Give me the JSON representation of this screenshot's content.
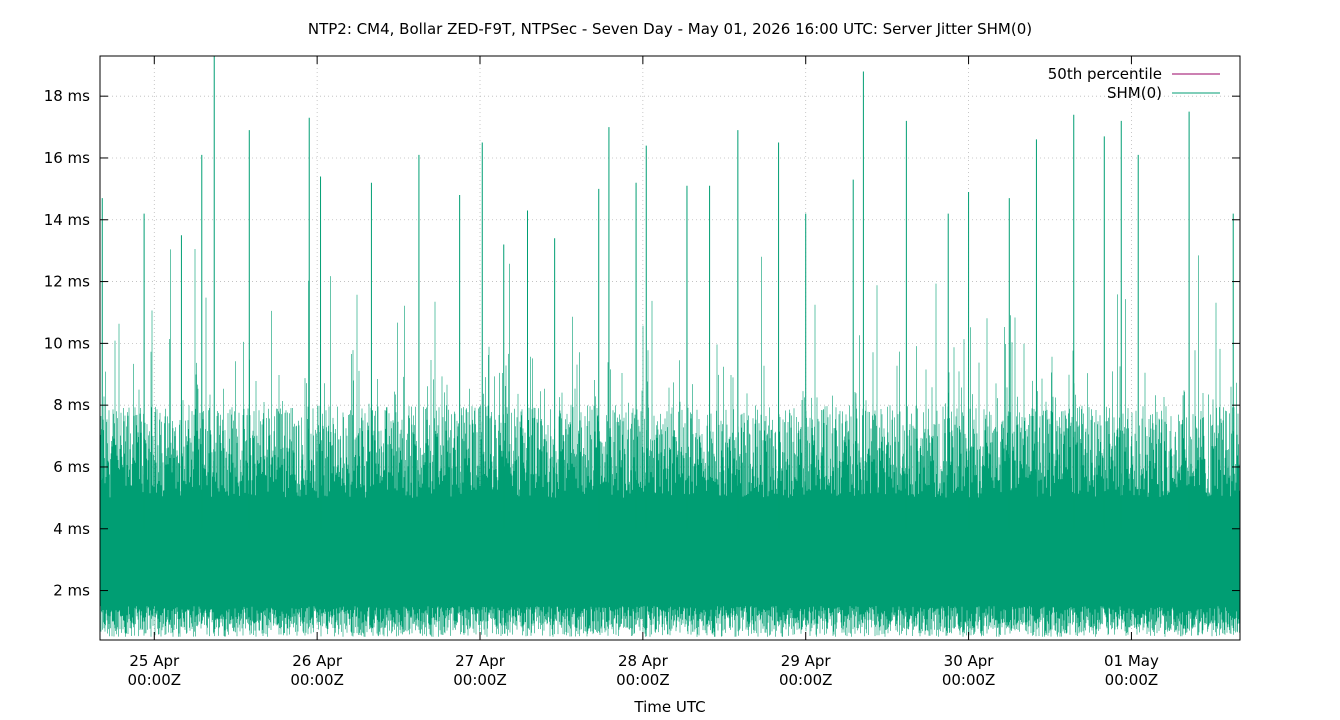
{
  "chart_data": {
    "type": "line",
    "title": "NTP2: CM4, Bollar ZED-F9T, NTPSec - Seven Day - May 01, 2026 16:00 UTC: Server Jitter SHM(0)",
    "xlabel": "Time UTC",
    "ylabel": "",
    "x_range": [
      "2026-04-24T16:00Z",
      "2026-05-01T16:00Z"
    ],
    "ylim": [
      0.4,
      19.3
    ],
    "y_ticks": [
      {
        "value": 2,
        "label": "2 ms"
      },
      {
        "value": 4,
        "label": "4 ms"
      },
      {
        "value": 6,
        "label": "6 ms"
      },
      {
        "value": 8,
        "label": "8 ms"
      },
      {
        "value": 10,
        "label": "10 ms"
      },
      {
        "value": 12,
        "label": "12 ms"
      },
      {
        "value": 14,
        "label": "14 ms"
      },
      {
        "value": 16,
        "label": "16 ms"
      },
      {
        "value": 18,
        "label": "18 ms"
      }
    ],
    "x_ticks": [
      {
        "date": "2026-04-25T00:00Z",
        "line1": "25 Apr",
        "line2": "00:00Z"
      },
      {
        "date": "2026-04-26T00:00Z",
        "line1": "26 Apr",
        "line2": "00:00Z"
      },
      {
        "date": "2026-04-27T00:00Z",
        "line1": "27 Apr",
        "line2": "00:00Z"
      },
      {
        "date": "2026-04-28T00:00Z",
        "line1": "28 Apr",
        "line2": "00:00Z"
      },
      {
        "date": "2026-04-29T00:00Z",
        "line1": "29 Apr",
        "line2": "00:00Z"
      },
      {
        "date": "2026-04-30T00:00Z",
        "line1": "30 Apr",
        "line2": "00:00Z"
      },
      {
        "date": "2026-05-01T00:00Z",
        "line1": "01 May",
        "line2": "00:00Z"
      }
    ],
    "grid": true,
    "legend_position": "top-right",
    "series": [
      {
        "name": "50th percentile",
        "color": "#990066",
        "values": []
      },
      {
        "name": "SHM(0)",
        "color": "#009e73",
        "dense_band": {
          "lower_ms": [
            0.5,
            1.5
          ],
          "upper_ms": [
            5.0,
            8.0
          ]
        },
        "peaks": [
          {
            "t": "2026-04-24T16:20Z",
            "ms": 14.7
          },
          {
            "t": "2026-04-24T22:30Z",
            "ms": 14.2
          },
          {
            "t": "2026-04-25T04:00Z",
            "ms": 13.5
          },
          {
            "t": "2026-04-25T07:00Z",
            "ms": 16.1
          },
          {
            "t": "2026-04-25T08:50Z",
            "ms": 19.3
          },
          {
            "t": "2026-04-25T14:00Z",
            "ms": 16.9
          },
          {
            "t": "2026-04-25T22:50Z",
            "ms": 17.3
          },
          {
            "t": "2026-04-26T00:30Z",
            "ms": 15.4
          },
          {
            "t": "2026-04-26T08:00Z",
            "ms": 15.2
          },
          {
            "t": "2026-04-26T15:00Z",
            "ms": 16.1
          },
          {
            "t": "2026-04-26T21:00Z",
            "ms": 14.8
          },
          {
            "t": "2026-04-27T00:20Z",
            "ms": 16.5
          },
          {
            "t": "2026-04-27T03:30Z",
            "ms": 13.2
          },
          {
            "t": "2026-04-27T07:00Z",
            "ms": 14.3
          },
          {
            "t": "2026-04-27T11:00Z",
            "ms": 13.4
          },
          {
            "t": "2026-04-27T17:30Z",
            "ms": 15.0
          },
          {
            "t": "2026-04-27T19:00Z",
            "ms": 17.0
          },
          {
            "t": "2026-04-27T23:00Z",
            "ms": 15.2
          },
          {
            "t": "2026-04-28T00:30Z",
            "ms": 16.4
          },
          {
            "t": "2026-04-28T06:30Z",
            "ms": 15.1
          },
          {
            "t": "2026-04-28T09:50Z",
            "ms": 15.1
          },
          {
            "t": "2026-04-28T14:00Z",
            "ms": 16.9
          },
          {
            "t": "2026-04-28T20:00Z",
            "ms": 16.5
          },
          {
            "t": "2026-04-29T00:00Z",
            "ms": 14.2
          },
          {
            "t": "2026-04-29T07:00Z",
            "ms": 15.3
          },
          {
            "t": "2026-04-29T08:30Z",
            "ms": 18.8
          },
          {
            "t": "2026-04-29T14:50Z",
            "ms": 17.2
          },
          {
            "t": "2026-04-29T21:00Z",
            "ms": 14.2
          },
          {
            "t": "2026-04-30T00:00Z",
            "ms": 14.9
          },
          {
            "t": "2026-04-30T06:00Z",
            "ms": 14.7
          },
          {
            "t": "2026-04-30T10:00Z",
            "ms": 16.6
          },
          {
            "t": "2026-04-30T15:30Z",
            "ms": 17.4
          },
          {
            "t": "2026-04-30T20:00Z",
            "ms": 16.7
          },
          {
            "t": "2026-04-30T22:30Z",
            "ms": 17.2
          },
          {
            "t": "2026-05-01T01:00Z",
            "ms": 16.1
          },
          {
            "t": "2026-05-01T08:30Z",
            "ms": 17.5
          },
          {
            "t": "2026-05-01T15:00Z",
            "ms": 14.2
          }
        ]
      }
    ]
  }
}
